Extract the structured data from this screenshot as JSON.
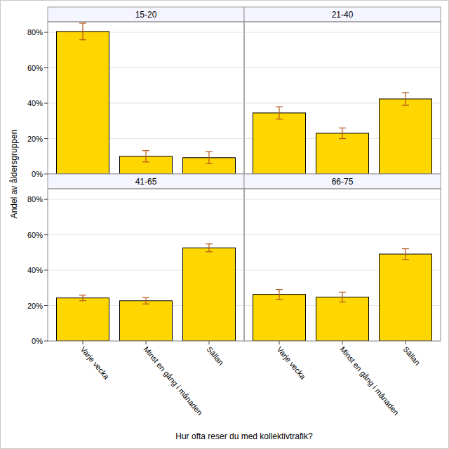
{
  "chart_data": {
    "type": "bar",
    "x_label": "Hur ofta reser du med kollektivtrafik?",
    "y_label": "Andel av åldersgruppen",
    "categories": [
      "Varje vecka",
      "Minst en gång i månaden",
      "Sällan"
    ],
    "color": "#ffd700",
    "grid": true,
    "ylim": [
      0,
      86
    ],
    "yticks": [
      {
        "value": 0,
        "label": "0%"
      },
      {
        "value": 20,
        "label": "20%"
      },
      {
        "value": 40,
        "label": "40%"
      },
      {
        "value": 60,
        "label": "60%"
      },
      {
        "value": 80,
        "label": "80%"
      }
    ],
    "panels": [
      {
        "title": "15-20",
        "values": [
          80.5,
          10,
          9.2
        ],
        "errors": [
          4.7,
          3.2,
          3.4
        ]
      },
      {
        "title": "21-40",
        "values": [
          34.5,
          23,
          42.4
        ],
        "errors": [
          3.5,
          3,
          3.6
        ]
      },
      {
        "title": "41-65",
        "values": [
          24.3,
          22.7,
          52.6
        ],
        "errors": [
          1.6,
          1.8,
          2.2
        ]
      },
      {
        "title": "66-75",
        "values": [
          26.3,
          24.8,
          49.1
        ],
        "errors": [
          2.8,
          2.8,
          3
        ]
      }
    ]
  }
}
